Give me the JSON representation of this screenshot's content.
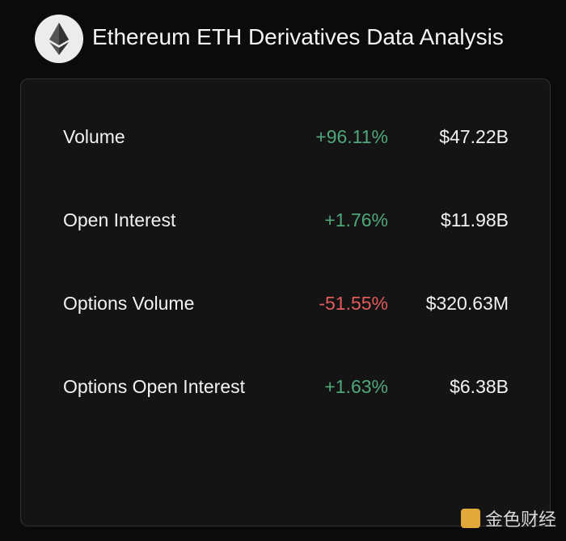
{
  "header": {
    "title": "Ethereum ETH Derivatives Data Analysis"
  },
  "table": {
    "rows": [
      [
        "Volume",
        "+96.11%",
        "$47.22B"
      ],
      [
        "Open Interest",
        "+1.76%",
        "$11.98B"
      ],
      [
        "Options Volume",
        "-51.55%",
        "$320.63M"
      ],
      [
        "Options Open Interest",
        "+1.63%",
        "$6.38B"
      ]
    ]
  },
  "watermark": "金色财经"
}
